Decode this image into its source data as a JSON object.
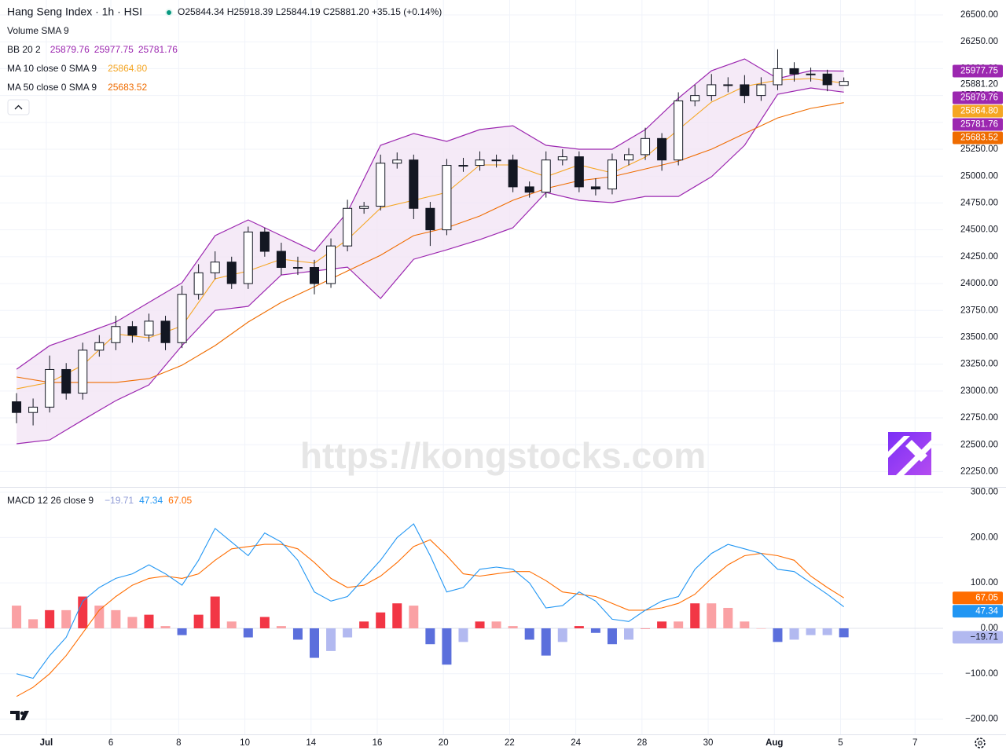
{
  "header": {
    "symbol": "Hang Seng Index · 1h · HSI",
    "ohlc": "O25844.34 H25918.39 L25844.19 C25881.20 +35.15 (+0.14%)",
    "volume": "Volume SMA 9"
  },
  "watermark": "https://kongstocks.com",
  "chart_data": [
    {
      "type": "candlestick",
      "xlim": [
        0,
        57
      ],
      "ylim": [
        22107,
        26639
      ],
      "yticks": [
        {
          "value": 22250,
          "label": "22250.00"
        },
        {
          "value": 22500,
          "label": "22500.00"
        },
        {
          "value": 22750,
          "label": "22750.00"
        },
        {
          "value": 23000,
          "label": "23000.00"
        },
        {
          "value": 23250,
          "label": "23250.00"
        },
        {
          "value": 23500,
          "label": "23500.00"
        },
        {
          "value": 23750,
          "label": "23750.00"
        },
        {
          "value": 24000,
          "label": "24000.00"
        },
        {
          "value": 24250,
          "label": "24250.00"
        },
        {
          "value": 24500,
          "label": "24500.00"
        },
        {
          "value": 24750,
          "label": "24750.00"
        },
        {
          "value": 25000,
          "label": "25000.00"
        },
        {
          "value": 25250,
          "label": "25250.00"
        },
        {
          "value": 25500,
          "label": "25500.00"
        },
        {
          "value": 25750,
          "label": "25750.00"
        },
        {
          "value": 26000,
          "label": "26000.00"
        },
        {
          "value": 26250,
          "label": "26250.00"
        },
        {
          "value": 26500,
          "label": "26500.00"
        }
      ],
      "grid": true,
      "up_color": "#ffffff",
      "down_color": "#131722",
      "candles": {
        "x": [
          1,
          2,
          3,
          4,
          5,
          6,
          7,
          8,
          9,
          10,
          11,
          12,
          13,
          14,
          15,
          16,
          17,
          18,
          19,
          20,
          21,
          22,
          23,
          24,
          25,
          26,
          27,
          28,
          29,
          30,
          31,
          32,
          33,
          34,
          35,
          36,
          37,
          38,
          39,
          40,
          41,
          42,
          43,
          44,
          45,
          46,
          47,
          48,
          49,
          50,
          51
        ],
        "open": [
          22900,
          22800,
          22850,
          23200,
          22980,
          23380,
          23450,
          23600,
          23520,
          23650,
          23450,
          23900,
          24100,
          24200,
          24000,
          24480,
          24300,
          24150,
          24150,
          24000,
          24350,
          24700,
          24720,
          25120,
          25150,
          24700,
          24500,
          25100,
          25100,
          25150,
          25150,
          24900,
          24850,
          25150,
          25180,
          24900,
          24880,
          25150,
          25200,
          25350,
          25150,
          25700,
          25750,
          25850,
          25850,
          25750,
          25850,
          26000,
          25950,
          25950,
          25844.34
        ],
        "high": [
          22980,
          22930,
          23330,
          23260,
          23450,
          23520,
          23700,
          23650,
          23720,
          23700,
          23980,
          24180,
          24300,
          24250,
          24530,
          24520,
          24380,
          24250,
          24220,
          24420,
          24780,
          24760,
          25200,
          25220,
          25200,
          24760,
          25160,
          25170,
          25230,
          25200,
          25200,
          24950,
          25230,
          25250,
          25230,
          24980,
          25210,
          25260,
          25450,
          25400,
          25780,
          25850,
          25950,
          25920,
          25940,
          25920,
          26180,
          26060,
          26010,
          25990,
          25918.39
        ],
        "low": [
          22700,
          22680,
          22800,
          22920,
          22920,
          23320,
          23380,
          23450,
          23460,
          23380,
          23400,
          23850,
          24040,
          23950,
          23950,
          24250,
          24080,
          24080,
          23900,
          23960,
          24300,
          24650,
          24680,
          25070,
          24600,
          24350,
          24450,
          25040,
          25050,
          25080,
          24850,
          24800,
          24800,
          25100,
          24850,
          24820,
          24830,
          25100,
          25150,
          25050,
          25100,
          25650,
          25700,
          25780,
          25680,
          25700,
          25800,
          25880,
          25880,
          25790,
          25844.19
        ],
        "close": [
          22800,
          22850,
          23200,
          22980,
          23380,
          23450,
          23600,
          23520,
          23650,
          23450,
          23900,
          24100,
          24200,
          24000,
          24480,
          24300,
          24150,
          24150,
          24000,
          24350,
          24700,
          24720,
          25120,
          25150,
          24700,
          24500,
          25100,
          25100,
          25150,
          25150,
          24900,
          24850,
          25150,
          25180,
          24900,
          24880,
          25150,
          25200,
          25350,
          25150,
          25700,
          25750,
          25850,
          25850,
          25750,
          25850,
          26000,
          25950,
          25950,
          25850,
          25881.2
        ]
      },
      "last_price": {
        "value": 25881.2,
        "label": "25881.20"
      },
      "line_x": [
        1,
        3,
        5,
        7,
        9,
        11,
        13,
        15,
        17,
        19,
        21,
        23,
        25,
        27,
        29,
        31,
        33,
        35,
        37,
        39,
        41,
        43,
        45,
        47,
        49,
        51
      ],
      "bb": {
        "label": "BB 20 2",
        "color": "#9c27b0",
        "fill": "#f3e5f5",
        "basis": [
          22856,
          22984,
          23130,
          23276,
          23441,
          23715,
          24098,
          24190,
          24263,
          24208,
          24409,
          24574,
          24811,
          24818,
          24921,
          24994,
          25067,
          25013,
          25001,
          25122,
          25268,
          25487,
          25689,
          25835,
          25900,
          25879.76
        ],
        "upper": [
          23203,
          23422,
          23530,
          23642,
          23825,
          24007,
          24446,
          24592,
          24446,
          24300,
          24665,
          25287,
          25396,
          25323,
          25433,
          25469,
          25287,
          25250,
          25250,
          25433,
          25725,
          25981,
          26091,
          25908,
          25981,
          25977.75
        ],
        "lower": [
          22509,
          22545,
          22730,
          22910,
          23057,
          23423,
          23750,
          23788,
          24080,
          24117,
          24153,
          23861,
          24226,
          24314,
          24409,
          24519,
          24848,
          24775,
          24753,
          24811,
          24811,
          24994,
          25287,
          25762,
          25820,
          25781.76
        ],
        "last_labels": [
          "25879.76",
          "25977.75",
          "25781.76"
        ]
      },
      "ma": [
        {
          "label": "MA 10 close 0 SMA 9",
          "color": "#f5a623",
          "values": [
            23020,
            23080,
            23240,
            23530,
            23495,
            23605,
            24044,
            24117,
            24227,
            24190,
            24409,
            24702,
            24775,
            24848,
            25104,
            25104,
            24994,
            25104,
            25030,
            25177,
            25433,
            25689,
            25835,
            25893,
            25908,
            25864.8
          ],
          "last_label": "25864.80"
        },
        {
          "label": "MA 50 close 0 SMA 9",
          "color": "#ef6c00",
          "values": [
            23130,
            23080,
            23080,
            23080,
            23115,
            23240,
            23423,
            23642,
            23825,
            23970,
            24117,
            24263,
            24446,
            24519,
            24629,
            24775,
            24885,
            24958,
            24994,
            25067,
            25140,
            25250,
            25396,
            25542,
            25630,
            25683.52
          ],
          "last_label": "25683.52"
        }
      ]
    },
    {
      "type": "macd",
      "label": "MACD 12 26 close 9",
      "xlim": [
        0,
        57
      ],
      "ylim": [
        -233.6,
        311.4
      ],
      "yticks": [
        {
          "value": 300,
          "label": "300.00"
        },
        {
          "value": 200,
          "label": "200.00"
        },
        {
          "value": 100,
          "label": "100.00"
        },
        {
          "value": 0,
          "label": "0.00"
        },
        {
          "value": -100,
          "label": "−100.00"
        },
        {
          "value": -200,
          "label": "−200.00"
        }
      ],
      "xticks": [
        {
          "value": 2.8,
          "label": "Jul"
        },
        {
          "value": 6.7,
          "label": "6"
        },
        {
          "value": 10.8,
          "label": "8"
        },
        {
          "value": 14.8,
          "label": "10"
        },
        {
          "value": 18.8,
          "label": "14"
        },
        {
          "value": 22.8,
          "label": "16"
        },
        {
          "value": 26.8,
          "label": "20"
        },
        {
          "value": 30.8,
          "label": "22"
        },
        {
          "value": 34.8,
          "label": "24"
        },
        {
          "value": 38.8,
          "label": "28"
        },
        {
          "value": 42.8,
          "label": "30"
        },
        {
          "value": 46.8,
          "label": "Aug"
        },
        {
          "value": 50.8,
          "label": "5"
        },
        {
          "value": 55.3,
          "label": "7"
        }
      ],
      "x": [
        1,
        2,
        3,
        4,
        5,
        6,
        7,
        8,
        9,
        10,
        11,
        12,
        13,
        14,
        15,
        16,
        17,
        18,
        19,
        20,
        21,
        22,
        23,
        24,
        25,
        26,
        27,
        28,
        29,
        30,
        31,
        32,
        33,
        34,
        35,
        36,
        37,
        38,
        39,
        40,
        41,
        42,
        43,
        44,
        45,
        46,
        47,
        48,
        49,
        50,
        51
      ],
      "histogram": {
        "values": [
          50,
          20,
          40,
          40,
          70,
          50,
          40,
          25,
          30,
          5,
          -15,
          30,
          70,
          15,
          -20,
          25,
          5,
          -25,
          -65,
          -50,
          -20,
          15,
          35,
          55,
          50,
          -35,
          -80,
          -30,
          15,
          15,
          5,
          -25,
          -60,
          -30,
          5,
          -10,
          -35,
          -25,
          0,
          15,
          15,
          55,
          55,
          45,
          15,
          0,
          -30,
          -25,
          -15,
          -15,
          -19.71
        ],
        "last_label": "−19.71",
        "colors": {
          "rising_above": "#f23645",
          "falling_above": "#faa1a4",
          "falling_below": "#5b6fdc",
          "rising_below": "#b2b9f0"
        }
      },
      "macd": {
        "color": "#2196f3",
        "values": [
          -100,
          -110,
          -60,
          -20,
          60,
          90,
          110,
          120,
          140,
          120,
          95,
          150,
          220,
          190,
          160,
          210,
          190,
          150,
          80,
          60,
          70,
          110,
          150,
          200,
          230,
          160,
          80,
          90,
          130,
          135,
          130,
          100,
          45,
          50,
          80,
          60,
          20,
          15,
          40,
          60,
          70,
          130,
          165,
          185,
          175,
          165,
          130,
          125,
          100,
          75,
          47.34
        ],
        "last_label": "47.34"
      },
      "signal": {
        "color": "#ff6d00",
        "values": [
          -150,
          -130,
          -100,
          -60,
          -10,
          40,
          70,
          95,
          110,
          115,
          110,
          120,
          150,
          175,
          180,
          185,
          185,
          175,
          145,
          110,
          90,
          95,
          115,
          145,
          180,
          195,
          160,
          120,
          115,
          120,
          125,
          125,
          105,
          80,
          75,
          70,
          55,
          40,
          40,
          45,
          55,
          75,
          110,
          140,
          160,
          165,
          160,
          150,
          115,
          90,
          67.05
        ],
        "last_label": "67.05"
      }
    }
  ]
}
